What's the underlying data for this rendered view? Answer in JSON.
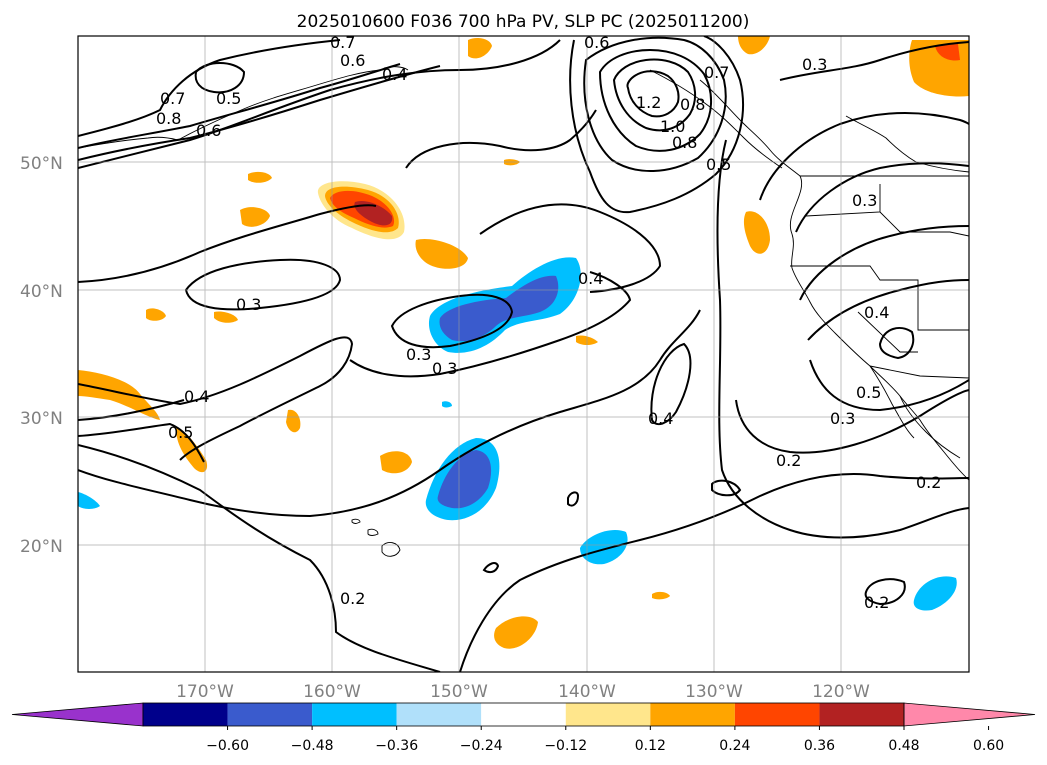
{
  "chart_data": {
    "type": "contour map",
    "title": "2025010600 F036 700 hPa PV, SLP PC (2025011200)",
    "lat_ticks": [
      "50°N",
      "40°N",
      "30°N",
      "20°N"
    ],
    "lon_ticks": [
      "170°W",
      "160°W",
      "150°W",
      "140°W",
      "130°W",
      "120°W"
    ],
    "colorbar": {
      "ticks": [
        "−0.60",
        "−0.48",
        "−0.36",
        "−0.24",
        "−0.12",
        "0.12",
        "0.24",
        "0.36",
        "0.48",
        "0.60"
      ],
      "colors": [
        "#9932cc",
        "#00008b",
        "#3a5bcd",
        "#00bfff",
        "#b0e0fa",
        "#ffffff",
        "#ffe68c",
        "#ffa500",
        "#ff4500",
        "#b22222",
        "#ff88aa"
      ],
      "extend": "both"
    },
    "contour_labels": [
      "0.7",
      "0.6",
      "0.4",
      "0.5",
      "0.7",
      "0.8",
      "0.6",
      "0.8",
      "1.2",
      "1.0",
      "0.8",
      "0.7",
      "0.6",
      "0.5",
      "0.3",
      "0.3",
      "0.4",
      "0.3",
      "0.3",
      "0.4",
      "0.5",
      "0.4",
      "0.4",
      "0.3",
      "0.2",
      "0.2",
      "0.3",
      "0.2",
      "0.2",
      "0.5"
    ],
    "grid": true
  }
}
